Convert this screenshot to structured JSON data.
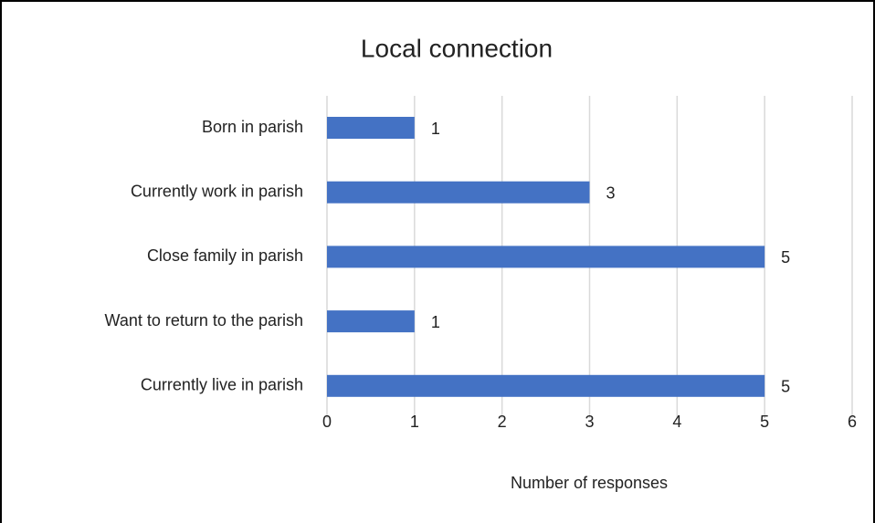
{
  "chart_data": {
    "type": "bar",
    "orientation": "horizontal",
    "title": "Local connection",
    "x_label": "Number of responses",
    "categories": [
      "Born in parish",
      "Currently work in parish",
      "Close family in parish",
      "Want to return to the parish",
      "Currently live in parish"
    ],
    "values": [
      1,
      3,
      5,
      1,
      5
    ],
    "color": "#4472c4",
    "xlim": [
      0,
      6
    ],
    "xticks": [
      0,
      1,
      2,
      3,
      4,
      5,
      6
    ],
    "grid": true
  }
}
